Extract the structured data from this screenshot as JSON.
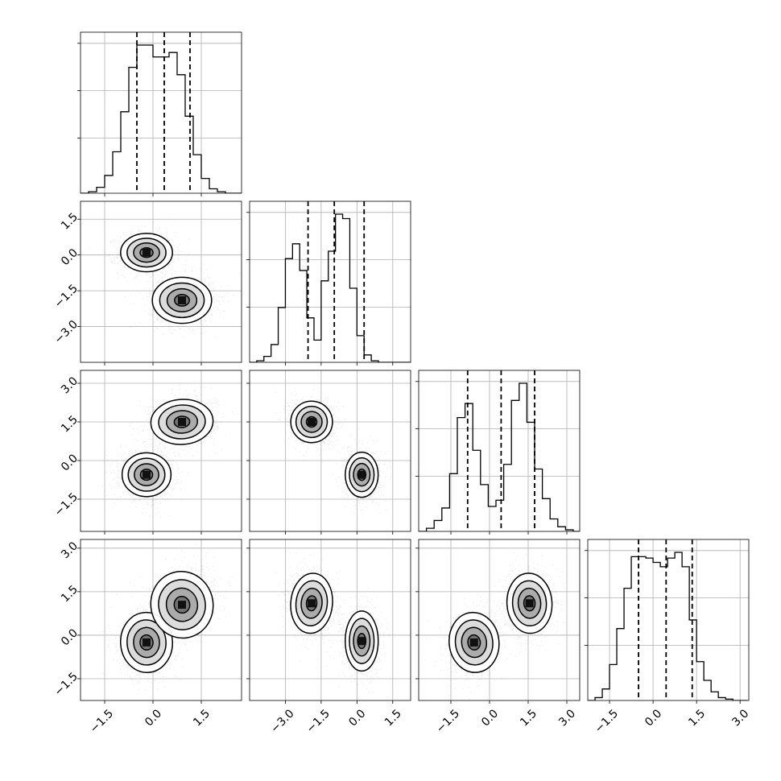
{
  "chart_data": {
    "type": "corner",
    "n_params": 4,
    "colors": {
      "line": "#000000",
      "grid": "#b0b0b0",
      "points": "#000000",
      "background": "#ffffff"
    },
    "grid": true,
    "tick_labels": {
      "p0": [
        "−1.5",
        "0.0",
        "1.5"
      ],
      "p1": [
        "−3.0",
        "−1.5",
        "0.0",
        "1.5"
      ],
      "p2": [
        "−1.5",
        "0.0",
        "1.5",
        "3.0"
      ],
      "p3": [
        "−1.5",
        "0.0",
        "1.5",
        "3.0"
      ]
    },
    "axes": {
      "ranges": [
        [
          -2.25,
          2.75
        ],
        [
          -4.5,
          2.25
        ],
        [
          -2.75,
          3.5
        ],
        [
          -2.25,
          3.3
        ]
      ],
      "ticks": [
        [
          -1.5,
          0.0,
          1.5
        ],
        [
          -3.0,
          -1.5,
          0.0,
          1.5
        ],
        [
          -1.5,
          0.0,
          1.5,
          3.0
        ],
        [
          -1.5,
          0.0,
          1.5,
          3.0
        ]
      ]
    },
    "histograms": [
      {
        "param": 0,
        "bin_start": -2.25,
        "bin_width": 0.25,
        "counts": [
          0,
          1,
          4,
          12,
          28,
          55,
          85,
          100,
          100,
          92,
          92,
          95,
          80,
          52,
          26,
          10,
          3,
          1,
          0,
          0
        ],
        "quantiles": [
          -0.5,
          0.35,
          1.15
        ]
      },
      {
        "param": 1,
        "bin_start": -4.5,
        "bin_width": 0.3,
        "counts": [
          0,
          1,
          4,
          12,
          37,
          70,
          80,
          62,
          30,
          15,
          55,
          75,
          100,
          97,
          50,
          18,
          5,
          1,
          0,
          0,
          0,
          0,
          0
        ],
        "quantiles": [
          -2.05,
          -0.95,
          0.3
        ]
      },
      {
        "param": 2,
        "bin_start": -2.75,
        "bin_width": 0.3,
        "counts": [
          0,
          2,
          7,
          15,
          37,
          73,
          82,
          52,
          30,
          16,
          20,
          43,
          84,
          95,
          70,
          40,
          21,
          8,
          3,
          1,
          0,
          0
        ],
        "quantiles": [
          -0.85,
          0.45,
          1.75
        ]
      },
      {
        "param": 3,
        "bin_start": -2.25,
        "bin_width": 0.25,
        "counts": [
          0,
          2,
          8,
          25,
          50,
          78,
          100,
          100,
          99,
          96,
          93,
          99,
          103,
          93,
          56,
          27,
          14,
          6,
          2,
          1,
          0,
          0
        ],
        "quantiles": [
          -0.5,
          0.45,
          1.35
        ]
      }
    ],
    "scatter_2d": [
      {
        "x_param": 0,
        "y_param": 1,
        "clusters": [
          {
            "center": [
              -0.2,
              0.1
            ],
            "sd": [
              0.35,
              0.35
            ],
            "corr": 0
          },
          {
            "center": [
              0.9,
              -1.9
            ],
            "sd": [
              0.4,
              0.42
            ],
            "corr": 0
          }
        ]
      },
      {
        "x_param": 0,
        "y_param": 2,
        "clusters": [
          {
            "center": [
              -0.2,
              -0.55
            ],
            "sd": [
              0.33,
              0.37
            ],
            "corr": 0
          },
          {
            "center": [
              0.9,
              1.5
            ],
            "sd": [
              0.42,
              0.38
            ],
            "corr": 0.1
          }
        ]
      },
      {
        "x_param": 1,
        "y_param": 2,
        "clusters": [
          {
            "center": [
              -1.9,
              1.5
            ],
            "sd": [
              0.38,
              0.35
            ],
            "corr": -0.15
          },
          {
            "center": [
              0.2,
              -0.55
            ],
            "sd": [
              0.3,
              0.38
            ],
            "corr": 0
          }
        ]
      },
      {
        "x_param": 0,
        "y_param": 3,
        "clusters": [
          {
            "center": [
              -0.2,
              -0.25
            ],
            "sd": [
              0.35,
              0.45
            ],
            "corr": 0.1
          },
          {
            "center": [
              0.9,
              1.05
            ],
            "sd": [
              0.42,
              0.5
            ],
            "corr": 0.3
          }
        ]
      },
      {
        "x_param": 1,
        "y_param": 3,
        "clusters": [
          {
            "center": [
              -1.9,
              1.1
            ],
            "sd": [
              0.38,
              0.45
            ],
            "corr": -0.15
          },
          {
            "center": [
              0.2,
              -0.2
            ],
            "sd": [
              0.3,
              0.45
            ],
            "corr": 0
          }
        ]
      },
      {
        "x_param": 2,
        "y_param": 3,
        "clusters": [
          {
            "center": [
              -0.6,
              -0.25
            ],
            "sd": [
              0.42,
              0.45
            ],
            "corr": 0.2
          },
          {
            "center": [
              1.55,
              1.1
            ],
            "sd": [
              0.38,
              0.45
            ],
            "corr": 0.1
          }
        ]
      }
    ],
    "contour_levels_sigma": [
      0.5,
      1.0,
      1.5,
      2.0
    ],
    "points_per_cluster": 1200
  }
}
